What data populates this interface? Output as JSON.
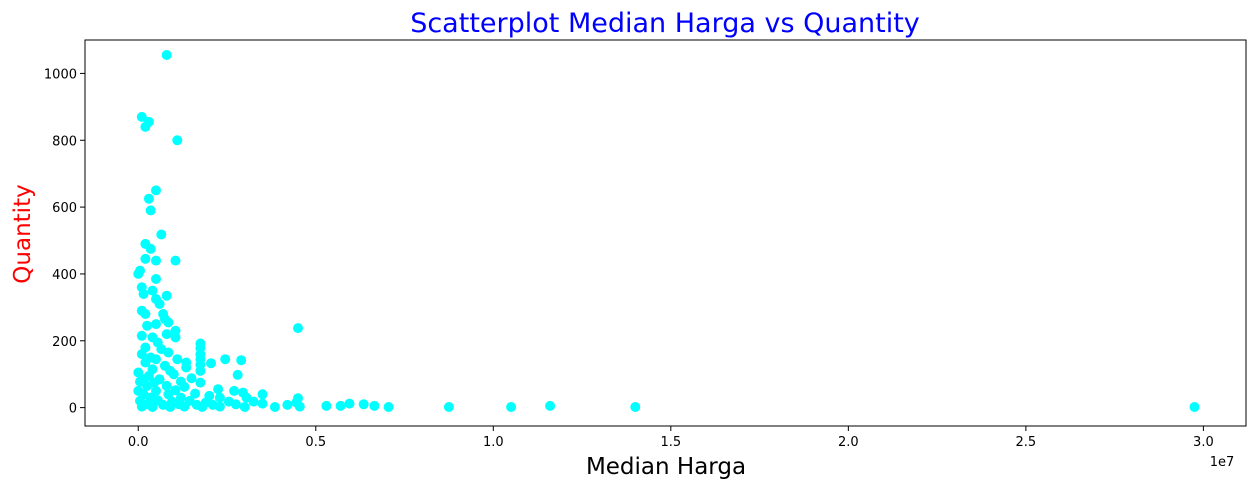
{
  "colors": {
    "title": "#0000ff",
    "ylabel": "#ff0000",
    "points": "#00ffff",
    "axis": "#000000"
  },
  "chart_data": {
    "type": "scatter",
    "title": "Scatterplot Median Harga vs Quantity",
    "xlabel": "Median Harga",
    "ylabel": "Quantity",
    "x_offset_label": "1e7",
    "xlim": [
      -1.5,
      31.2
    ],
    "ylim": [
      -55,
      1100
    ],
    "x_ticks": [
      0,
      0.5,
      1.0,
      1.5,
      2.0,
      2.5,
      3.0
    ],
    "x_tick_labels": [
      "0.0",
      "0.5",
      "1.0",
      "1.5",
      "2.0",
      "2.5",
      "3.0"
    ],
    "y_ticks": [
      0,
      200,
      400,
      600,
      800,
      1000
    ],
    "y_tick_labels": [
      "0",
      "200",
      "400",
      "600",
      "800",
      "1000"
    ],
    "grid": false,
    "series": [
      {
        "x_units": "1e6",
        "points": [
          [
            0.8,
            1055
          ],
          [
            0.3,
            855
          ],
          [
            0.1,
            870
          ],
          [
            0.2,
            840
          ],
          [
            1.1,
            800
          ],
          [
            0.5,
            650
          ],
          [
            0.3,
            625
          ],
          [
            0.35,
            590
          ],
          [
            0.65,
            518
          ],
          [
            0.2,
            490
          ],
          [
            0.35,
            475
          ],
          [
            0.2,
            445
          ],
          [
            0.5,
            440
          ],
          [
            1.05,
            440
          ],
          [
            0.05,
            410
          ],
          [
            0.0,
            400
          ],
          [
            0.5,
            385
          ],
          [
            0.1,
            360
          ],
          [
            0.4,
            350
          ],
          [
            0.15,
            340
          ],
          [
            0.5,
            325
          ],
          [
            0.8,
            335
          ],
          [
            0.6,
            310
          ],
          [
            0.1,
            290
          ],
          [
            0.2,
            280
          ],
          [
            0.7,
            280
          ],
          [
            0.75,
            265
          ],
          [
            0.5,
            250
          ],
          [
            0.25,
            245
          ],
          [
            0.85,
            255
          ],
          [
            4.5,
            238
          ],
          [
            1.05,
            230
          ],
          [
            0.1,
            215
          ],
          [
            0.4,
            210
          ],
          [
            0.8,
            220
          ],
          [
            1.05,
            210
          ],
          [
            0.55,
            195
          ],
          [
            1.75,
            192
          ],
          [
            0.2,
            180
          ],
          [
            0.65,
            175
          ],
          [
            1.75,
            178
          ],
          [
            0.85,
            165
          ],
          [
            0.1,
            160
          ],
          [
            1.75,
            160
          ],
          [
            0.35,
            150
          ],
          [
            0.5,
            145
          ],
          [
            1.1,
            145
          ],
          [
            1.75,
            145
          ],
          [
            2.45,
            145
          ],
          [
            2.9,
            142
          ],
          [
            0.2,
            135
          ],
          [
            1.35,
            135
          ],
          [
            2.05,
            133
          ],
          [
            0.75,
            125
          ],
          [
            1.75,
            128
          ],
          [
            0.4,
            115
          ],
          [
            1.35,
            120
          ],
          [
            0.0,
            105
          ],
          [
            0.9,
            110
          ],
          [
            1.75,
            110
          ],
          [
            0.3,
            95
          ],
          [
            1.0,
            100
          ],
          [
            2.8,
            98
          ],
          [
            0.15,
            85
          ],
          [
            0.6,
            85
          ],
          [
            1.5,
            88
          ],
          [
            0.05,
            78
          ],
          [
            0.45,
            75
          ],
          [
            1.2,
            78
          ],
          [
            1.75,
            75
          ],
          [
            0.25,
            65
          ],
          [
            0.8,
            65
          ],
          [
            1.3,
            62
          ],
          [
            2.25,
            55
          ],
          [
            0.0,
            50
          ],
          [
            0.5,
            50
          ],
          [
            1.05,
            52
          ],
          [
            2.7,
            50
          ],
          [
            2.95,
            45
          ],
          [
            0.15,
            40
          ],
          [
            0.85,
            40
          ],
          [
            1.6,
            42
          ],
          [
            3.5,
            40
          ],
          [
            0.35,
            30
          ],
          [
            1.2,
            30
          ],
          [
            2.0,
            35
          ],
          [
            2.3,
            30
          ],
          [
            3.05,
            30
          ],
          [
            4.5,
            28
          ],
          [
            0.05,
            20
          ],
          [
            0.55,
            22
          ],
          [
            0.95,
            18
          ],
          [
            1.45,
            20
          ],
          [
            1.9,
            15
          ],
          [
            2.55,
            18
          ],
          [
            3.25,
            18
          ],
          [
            4.45,
            15
          ],
          [
            0.25,
            10
          ],
          [
            0.7,
            8
          ],
          [
            1.15,
            10
          ],
          [
            1.65,
            8
          ],
          [
            2.1,
            8
          ],
          [
            2.75,
            10
          ],
          [
            3.5,
            12
          ],
          [
            4.2,
            8
          ],
          [
            5.3,
            5
          ],
          [
            5.7,
            5
          ],
          [
            5.95,
            12
          ],
          [
            6.35,
            10
          ],
          [
            6.65,
            5
          ],
          [
            0.1,
            3
          ],
          [
            0.4,
            2
          ],
          [
            0.9,
            2
          ],
          [
            1.3,
            3
          ],
          [
            1.8,
            2
          ],
          [
            2.3,
            3
          ],
          [
            3.0,
            2
          ],
          [
            3.85,
            2
          ],
          [
            4.55,
            3
          ],
          [
            7.05,
            2
          ],
          [
            8.75,
            2
          ],
          [
            10.5,
            2
          ],
          [
            11.6,
            5
          ],
          [
            14.0,
            2
          ],
          [
            29.75,
            2
          ]
        ]
      }
    ]
  }
}
